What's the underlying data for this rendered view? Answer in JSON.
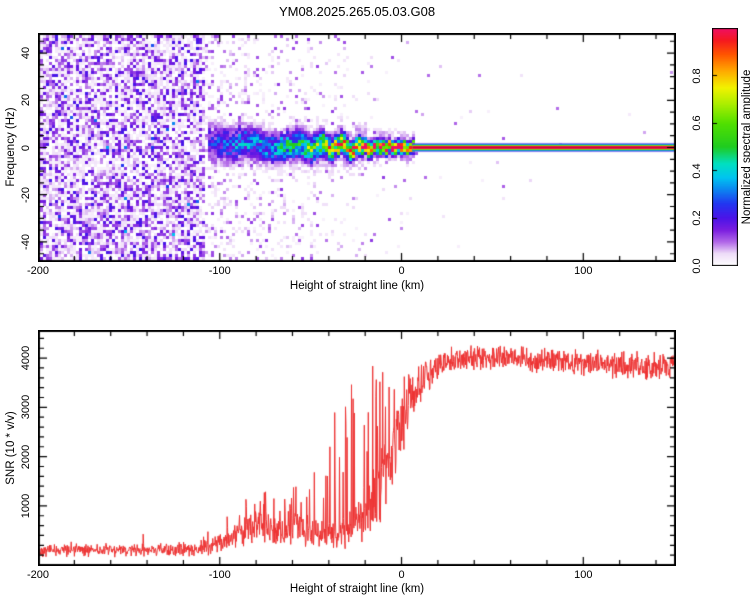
{
  "title": "YM08.2025.265.05.03.G08",
  "colors": {
    "background": "#ffffff",
    "frame": "#000000",
    "text": "#000000",
    "snr_line": "#ee3333"
  },
  "chart_data": [
    {
      "type": "heatmap",
      "title": "YM08.2025.265.05.03.G08",
      "xlabel": "Height of straight line (km)",
      "ylabel": "Frequency (Hz)",
      "xlim": [
        -200,
        151
      ],
      "ylim": [
        -48.5,
        48.5
      ],
      "xticks": [
        -200,
        -100,
        0,
        100
      ],
      "x_minor_step": 20,
      "yticks": [
        -40,
        -20,
        0,
        20,
        40
      ],
      "y_minor_step": 5,
      "grid": false,
      "seed": 1337,
      "colorbar": {
        "label": "Normalized spectral amplitude",
        "range": [
          0,
          1
        ],
        "ticks": [
          {
            "v": 0.0,
            "label": "0.0"
          },
          {
            "v": 0.2,
            "label": "0.2"
          },
          {
            "v": 0.4,
            "label": "0.4"
          },
          {
            "v": 0.6,
            "label": "0.6"
          },
          {
            "v": 0.8,
            "label": "0.8"
          }
        ],
        "colormap": [
          [
            0.0,
            "#ffffff"
          ],
          [
            0.05,
            "#eedcf8"
          ],
          [
            0.1,
            "#b066e8"
          ],
          [
            0.15,
            "#7a1ee0"
          ],
          [
            0.2,
            "#4b14e8"
          ],
          [
            0.26,
            "#2236f0"
          ],
          [
            0.32,
            "#0c86f0"
          ],
          [
            0.37,
            "#00c4f0"
          ],
          [
            0.43,
            "#00e0c0"
          ],
          [
            0.5,
            "#20cc20"
          ],
          [
            0.6,
            "#52e000"
          ],
          [
            0.68,
            "#aaee00"
          ],
          [
            0.75,
            "#f2f200"
          ],
          [
            0.82,
            "#ffaa00"
          ],
          [
            0.89,
            "#ff5500"
          ],
          [
            0.95,
            "#f51820"
          ],
          [
            1.0,
            "#ef0f64"
          ]
        ]
      },
      "noise": {
        "full_until": -108,
        "full_density": 0.8,
        "sparse_density": [
          [
            -107.5,
            0.3
          ],
          [
            -85,
            0.22
          ],
          [
            -60,
            0.16
          ],
          [
            -45,
            0.1
          ],
          [
            -30,
            0.06
          ],
          [
            -15,
            0.035
          ],
          [
            0,
            0.02
          ],
          [
            20,
            0.006
          ],
          [
            151,
            0.003
          ]
        ]
      },
      "band": {
        "x_start": -106.5,
        "clean_from": 6,
        "keypoints": [
          [
            -106,
            2,
            5.5,
            0.2
          ],
          [
            -95,
            1,
            5,
            0.28
          ],
          [
            -85,
            2,
            4.5,
            0.33
          ],
          [
            -75,
            0.5,
            4.2,
            0.36
          ],
          [
            -65,
            0,
            4,
            0.4
          ],
          [
            -57,
            2,
            4,
            0.46
          ],
          [
            -50,
            -1,
            3.6,
            0.55
          ],
          [
            -44,
            1.5,
            3.4,
            0.62
          ],
          [
            -38,
            -1,
            3.0,
            0.72
          ],
          [
            -33,
            2,
            2.8,
            0.8
          ],
          [
            -28,
            -1.5,
            2.6,
            0.85
          ],
          [
            -23,
            1,
            2.4,
            0.88
          ],
          [
            -18,
            -0.5,
            2.2,
            0.9
          ],
          [
            -13,
            0.5,
            2.0,
            0.92
          ],
          [
            -8,
            0,
            1.9,
            0.94
          ],
          [
            -2,
            0.5,
            1.8,
            0.95
          ],
          [
            4,
            0,
            1.7,
            0.96
          ],
          [
            8,
            0,
            1.6,
            0.97
          ]
        ],
        "stripe_layers": [
          {
            "h": 10.0,
            "color": "#d8c0f455"
          },
          {
            "h": 8.0,
            "color": "#2323ee"
          },
          {
            "h": 6.4,
            "color": "#00b0f0"
          },
          {
            "h": 5.2,
            "color": "#1ecb1e"
          },
          {
            "h": 4.0,
            "color": "#e0ee00"
          },
          {
            "h": 3.0,
            "color": "#f01840"
          },
          {
            "h": 1.2,
            "color": "#cc0040"
          }
        ]
      }
    },
    {
      "type": "line",
      "xlabel": "Height of straight line (km)",
      "ylabel": "SNR (10 * v/v)",
      "xlim": [
        -200,
        151
      ],
      "ylim": [
        -220,
        4570
      ],
      "xticks": [
        -200,
        -100,
        0,
        100
      ],
      "x_minor_step": 20,
      "yticks": [
        1000,
        2000,
        3000,
        4000
      ],
      "y_minor_step": 200,
      "grid": false,
      "color": "#ee3333",
      "seed": 42,
      "envelope_note": "columns: x_km, mean, half_spread, spike_probability, spike_height",
      "envelope": [
        [
          -200,
          100,
          150,
          0.004,
          350
        ],
        [
          -160,
          100,
          150,
          0.006,
          420
        ],
        [
          -125,
          110,
          155,
          0.004,
          300
        ],
        [
          -112,
          130,
          170,
          0.01,
          260
        ],
        [
          -104,
          210,
          230,
          0.03,
          380
        ],
        [
          -96,
          340,
          300,
          0.05,
          500
        ],
        [
          -88,
          520,
          400,
          0.07,
          600
        ],
        [
          -80,
          620,
          460,
          0.08,
          650
        ],
        [
          -72,
          600,
          450,
          0.08,
          700
        ],
        [
          -64,
          520,
          420,
          0.08,
          800
        ],
        [
          -58,
          680,
          500,
          0.09,
          900
        ],
        [
          -52,
          500,
          420,
          0.08,
          950
        ],
        [
          -46,
          380,
          340,
          0.08,
          1500
        ],
        [
          -40,
          420,
          380,
          0.1,
          2300
        ],
        [
          -34,
          480,
          430,
          0.12,
          3000
        ],
        [
          -28,
          600,
          510,
          0.13,
          3200
        ],
        [
          -22,
          800,
          640,
          0.13,
          3000
        ],
        [
          -16,
          1100,
          820,
          0.14,
          2800
        ],
        [
          -10,
          1600,
          1000,
          0.13,
          2300
        ],
        [
          -4,
          2200,
          1000,
          0.1,
          1700
        ],
        [
          2,
          2800,
          900,
          0.06,
          1100
        ],
        [
          8,
          3300,
          650,
          0.03,
          700
        ],
        [
          14,
          3650,
          450,
          0.012,
          400
        ],
        [
          20,
          3870,
          330,
          0,
          0
        ],
        [
          30,
          3980,
          300,
          0,
          0
        ],
        [
          45,
          4010,
          290,
          0,
          0
        ],
        [
          60,
          3990,
          290,
          0,
          0
        ],
        [
          80,
          3950,
          300,
          0,
          0
        ],
        [
          100,
          3900,
          300,
          0,
          0
        ],
        [
          125,
          3850,
          310,
          0,
          0
        ],
        [
          151,
          3800,
          320,
          0,
          0
        ]
      ]
    }
  ]
}
